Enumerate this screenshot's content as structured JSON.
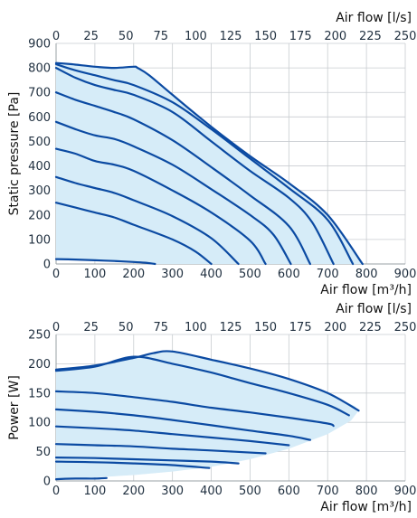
{
  "chart_data": [
    {
      "type": "line",
      "top_axis_label": "Air flow [l/s]",
      "xlabel": "Air flow [m³/h]",
      "ylabel": "Static pressure [Pa]",
      "xlim": [
        0,
        900
      ],
      "ylim": [
        0,
        900
      ],
      "x_ticks": [
        0,
        100,
        200,
        300,
        400,
        500,
        600,
        700,
        800,
        900
      ],
      "y_ticks": [
        0,
        100,
        200,
        300,
        400,
        500,
        600,
        700,
        800,
        900
      ],
      "x2_ticks": [
        0,
        25,
        50,
        75,
        100,
        125,
        150,
        175,
        200,
        225,
        250
      ],
      "grid": true,
      "colors": {
        "curve": "#0b4aa2",
        "area": "#d6ecf8"
      },
      "envelope": {
        "x": [
          0,
          40,
          100,
          150,
          200,
          210,
          240,
          300,
          400,
          500,
          600,
          700,
          790,
          260,
          0
        ],
        "y": [
          820,
          815,
          805,
          800,
          805,
          800,
          770,
          690,
          560,
          440,
          330,
          200,
          0,
          0,
          20
        ]
      },
      "series": [
        {
          "x": [
            0,
            40,
            100,
            150,
            200,
            210,
            240,
            300,
            400,
            500,
            600,
            700,
            790
          ],
          "y": [
            820,
            815,
            805,
            800,
            805,
            800,
            770,
            690,
            560,
            440,
            330,
            200,
            0
          ]
        },
        {
          "x": [
            0,
            50,
            100,
            150,
            200,
            300,
            400,
            500,
            600,
            700,
            765
          ],
          "y": [
            815,
            790,
            770,
            750,
            730,
            660,
            550,
            430,
            310,
            180,
            0
          ]
        },
        {
          "x": [
            0,
            50,
            100,
            150,
            200,
            300,
            400,
            500,
            600,
            660,
            715
          ],
          "y": [
            800,
            760,
            730,
            710,
            690,
            620,
            500,
            380,
            270,
            170,
            0
          ]
        },
        {
          "x": [
            0,
            50,
            100,
            150,
            200,
            300,
            400,
            500,
            600,
            655
          ],
          "y": [
            700,
            670,
            645,
            620,
            590,
            505,
            395,
            280,
            155,
            0
          ]
        },
        {
          "x": [
            0,
            50,
            100,
            150,
            200,
            300,
            400,
            500,
            560,
            605
          ],
          "y": [
            580,
            550,
            525,
            510,
            480,
            405,
            305,
            200,
            120,
            0
          ]
        },
        {
          "x": [
            0,
            50,
            100,
            150,
            200,
            300,
            400,
            500,
            540
          ],
          "y": [
            470,
            450,
            420,
            405,
            380,
            300,
            210,
            95,
            0
          ]
        },
        {
          "x": [
            0,
            50,
            100,
            150,
            200,
            300,
            400,
            470
          ],
          "y": [
            355,
            330,
            310,
            290,
            260,
            195,
            105,
            0
          ]
        },
        {
          "x": [
            0,
            50,
            100,
            150,
            200,
            300,
            360,
            400
          ],
          "y": [
            250,
            230,
            210,
            190,
            160,
            100,
            50,
            0
          ]
        },
        {
          "x": [
            0,
            50,
            100,
            150,
            200,
            230,
            255
          ],
          "y": [
            20,
            18,
            15,
            12,
            8,
            5,
            0
          ]
        }
      ]
    },
    {
      "type": "line",
      "top_axis_label": "Air flow [l/s]",
      "xlabel": "Air flow [m³/h]",
      "ylabel": "Power [W]",
      "xlim": [
        0,
        900
      ],
      "ylim": [
        0,
        250
      ],
      "x_ticks": [
        0,
        100,
        200,
        300,
        400,
        500,
        600,
        700,
        800,
        900
      ],
      "y_ticks": [
        0,
        50,
        100,
        150,
        200,
        250
      ],
      "x2_ticks": [
        0,
        25,
        50,
        75,
        100,
        125,
        150,
        175,
        200,
        225,
        250
      ],
      "grid": true,
      "colors": {
        "curve": "#0b4aa2",
        "area": "#d6ecf8"
      },
      "envelope": {
        "x": [
          0,
          100,
          200,
          250,
          300,
          400,
          500,
          600,
          700,
          770,
          780,
          760,
          700,
          600,
          500,
          400,
          300,
          200,
          100,
          0
        ],
        "y": [
          190,
          197,
          210,
          218,
          221,
          207,
          192,
          174,
          150,
          128,
          120,
          103,
          80,
          55,
          37,
          24,
          16,
          10,
          6,
          3
        ]
      },
      "series": [
        {
          "x": [
            0,
            100,
            200,
            250,
            300,
            400,
            500,
            600,
            700,
            780
          ],
          "y": [
            190,
            197,
            210,
            218,
            221,
            207,
            192,
            174,
            150,
            120
          ]
        },
        {
          "x": [
            0,
            100,
            200,
            300,
            400,
            500,
            600,
            700,
            755
          ],
          "y": [
            188,
            195,
            212,
            200,
            185,
            167,
            150,
            130,
            112
          ]
        },
        {
          "x": [
            0,
            100,
            200,
            300,
            400,
            500,
            600,
            700,
            715
          ],
          "y": [
            153,
            150,
            143,
            135,
            125,
            117,
            108,
            98,
            94
          ]
        },
        {
          "x": [
            0,
            100,
            200,
            300,
            400,
            500,
            600,
            655
          ],
          "y": [
            122,
            118,
            112,
            104,
            95,
            86,
            77,
            70
          ]
        },
        {
          "x": [
            0,
            100,
            200,
            300,
            400,
            500,
            600
          ],
          "y": [
            93,
            90,
            86,
            80,
            74,
            68,
            61
          ]
        },
        {
          "x": [
            0,
            100,
            200,
            300,
            400,
            540
          ],
          "y": [
            63,
            61,
            59,
            55,
            52,
            47
          ]
        },
        {
          "x": [
            0,
            100,
            200,
            300,
            400,
            470
          ],
          "y": [
            40,
            39,
            37,
            35,
            33,
            30
          ]
        },
        {
          "x": [
            0,
            100,
            200,
            300,
            395
          ],
          "y": [
            33,
            32,
            30,
            27,
            22
          ]
        },
        {
          "x": [
            0,
            50,
            100,
            130
          ],
          "y": [
            3,
            4,
            4,
            5
          ]
        }
      ]
    }
  ]
}
